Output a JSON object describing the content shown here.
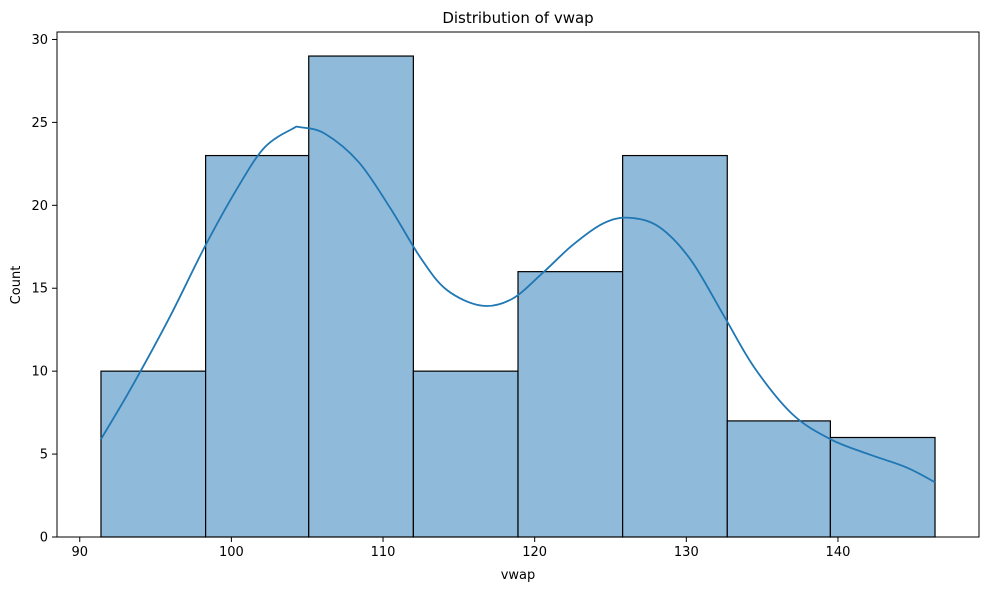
{
  "chart_data": {
    "type": "bar",
    "title": "Distribution of vwap",
    "xlabel": "vwap",
    "ylabel": "Count",
    "xlim": [
      88.5,
      149.3
    ],
    "ylim": [
      0,
      30.45
    ],
    "xticks": [
      90,
      100,
      110,
      120,
      130,
      140
    ],
    "yticks": [
      0,
      5,
      10,
      15,
      20,
      25,
      30
    ],
    "bins": [
      {
        "start": 91.4,
        "end": 98.3,
        "count": 10
      },
      {
        "start": 98.3,
        "end": 105.1,
        "count": 23
      },
      {
        "start": 105.1,
        "end": 112.0,
        "count": 29
      },
      {
        "start": 112.0,
        "end": 118.9,
        "count": 10
      },
      {
        "start": 118.9,
        "end": 125.8,
        "count": 16
      },
      {
        "start": 125.8,
        "end": 132.7,
        "count": 23
      },
      {
        "start": 132.7,
        "end": 139.5,
        "count": 7
      },
      {
        "start": 139.5,
        "end": 146.4,
        "count": 6
      }
    ],
    "kde": {
      "x": [
        91.4,
        93.4,
        95.9,
        98.3,
        100.5,
        102.2,
        104.0,
        104.6,
        106.2,
        108.4,
        110.5,
        112.5,
        114.2,
        116.5,
        118.5,
        120.5,
        122.5,
        124.5,
        126.2,
        128.2,
        130.3,
        132.5,
        134.5,
        137.0,
        139.5,
        142.0,
        144.5,
        146.4
      ],
      "y": [
        5.9,
        9.0,
        13.2,
        17.6,
        21.2,
        23.5,
        24.6,
        24.7,
        24.3,
        22.6,
        19.8,
        16.8,
        14.9,
        13.95,
        14.35,
        15.9,
        17.6,
        18.9,
        19.25,
        18.7,
        16.7,
        13.3,
        10.2,
        7.4,
        5.9,
        5.0,
        4.2,
        3.3
      ]
    },
    "colors": {
      "bar_fill": "#90bad9",
      "bar_edge": "#000000",
      "kde_line": "#1f77b4"
    },
    "grid": false,
    "legend": "none"
  }
}
